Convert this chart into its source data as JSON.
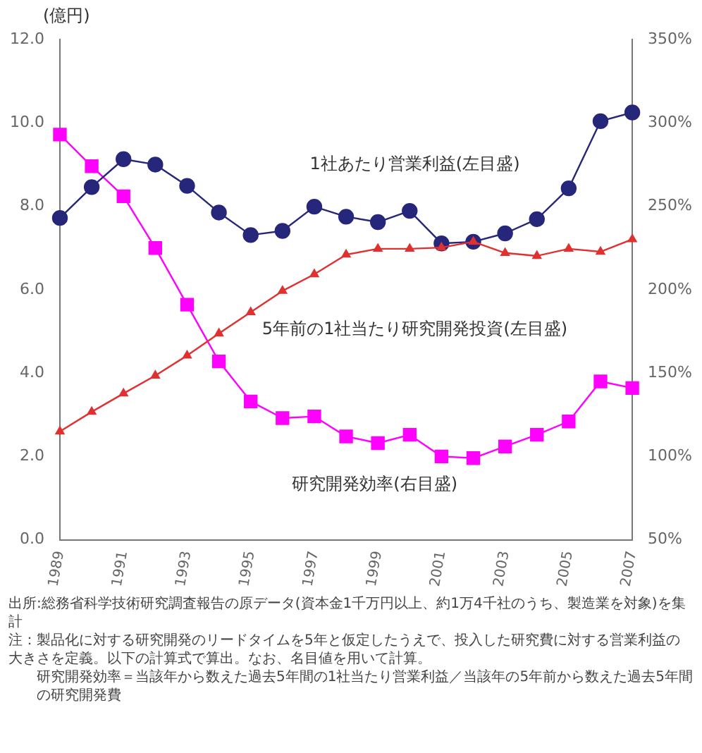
{
  "chart_data": {
    "type": "line",
    "ylabel": "(億円)",
    "categories": [
      "1989",
      null,
      "1991",
      null,
      "1993",
      null,
      "1995",
      null,
      "1997",
      null,
      "1999",
      null,
      "2001",
      null,
      "2003",
      null,
      "2005",
      null,
      "2007"
    ],
    "series": [
      {
        "name": "1社あたり営業利益(左目盛)",
        "color": "#26267a",
        "marker": "circle",
        "values": [
          7.72,
          8.46,
          9.13,
          9.0,
          8.49,
          7.85,
          7.31,
          7.41,
          7.99,
          7.75,
          7.62,
          7.89,
          7.11,
          7.15,
          7.35,
          7.69,
          8.43,
          10.04,
          10.25
        ]
      },
      {
        "name": "5年前の1社当たり研究開発投資(左目盛)",
        "color": "#e03030",
        "marker": "triangle",
        "values": [
          2.6,
          3.07,
          3.51,
          3.94,
          4.42,
          4.95,
          5.46,
          5.97,
          6.37,
          6.84,
          6.98,
          6.98,
          7.01,
          7.15,
          6.88,
          6.81,
          6.98,
          6.91,
          7.21
        ]
      },
      {
        "name": "研究開発効率(右目盛)",
        "color": "#ff00ff",
        "marker": "square",
        "axis": "y2",
        "values": [
          293,
          274,
          256,
          225,
          191,
          157,
          133,
          123,
          124,
          112,
          108,
          113,
          100,
          99,
          106,
          113,
          121,
          145,
          141
        ]
      }
    ],
    "ylim": [
      0,
      12
    ],
    "yticks": [
      {
        "value": 0,
        "label": "0.0"
      },
      {
        "value": 2,
        "label": "2.0"
      },
      {
        "value": 4,
        "label": "4.0"
      },
      {
        "value": 6,
        "label": "6.0"
      },
      {
        "value": 8,
        "label": "8.0"
      },
      {
        "value": 10,
        "label": "10.0"
      },
      {
        "value": 12,
        "label": "12.0"
      }
    ],
    "y2lim": [
      50,
      350
    ],
    "y2ticks": [
      {
        "value": 50,
        "label": "50%"
      },
      {
        "value": 100,
        "label": "100%"
      },
      {
        "value": 150,
        "label": "150%"
      },
      {
        "value": 200,
        "label": "200%"
      },
      {
        "value": 250,
        "label": "250%"
      },
      {
        "value": 300,
        "label": "300%"
      },
      {
        "value": 350,
        "label": "350%"
      }
    ],
    "grid": false,
    "legend": false,
    "line_style": "solid",
    "annotations": [
      "出所:総務省科学技術研究調査報告の原データ(資本金1千万円以上、約1万4千社のうち、製造業を対象)を集計",
      "注：製品化に対する研究開発のリードタイムを5年と仮定したうえで、投入した研究費に対する営業利益の大きさを定義。以下の計算式で算出。なお、名目値を用いて計算。",
      "研究開発効率＝当該年から数えた過去5年間の1社当たり営業利益／当該年の5年前から数えた過去5年間の研究開発費"
    ]
  }
}
